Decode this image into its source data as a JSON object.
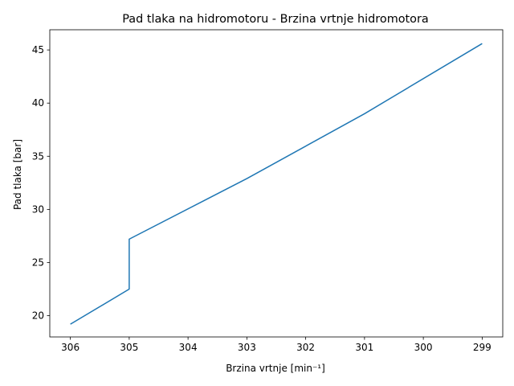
{
  "chart_data": {
    "type": "line",
    "title": "Pad tlaka na hidromotoru - Brzina vrtnje hidromotora",
    "xlabel": "Brzina vrtnje [min⁻¹]",
    "ylabel": "Pad tlaka [bar]",
    "x_inverted": true,
    "xlim": [
      306.35,
      298.65
    ],
    "ylim": [
      18.0,
      46.9
    ],
    "x_ticks": [
      306,
      305,
      304,
      303,
      302,
      301,
      300,
      299
    ],
    "y_ticks": [
      20,
      25,
      30,
      35,
      40,
      45
    ],
    "grid": false,
    "line_color": "#1f77b4",
    "series": [
      {
        "x": [
          306,
          305,
          305,
          303,
          301,
          299
        ],
        "y": [
          19.2,
          22.5,
          27.2,
          32.9,
          39.0,
          45.6
        ]
      }
    ]
  }
}
